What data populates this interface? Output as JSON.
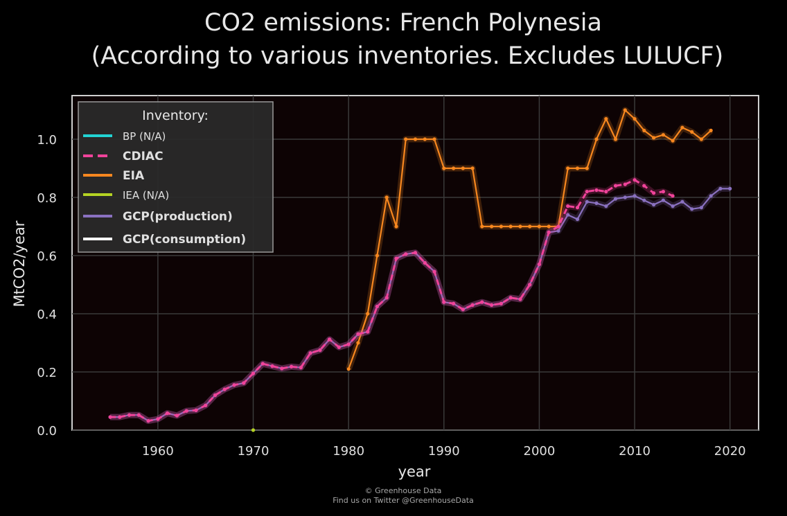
{
  "chart_data": {
    "type": "line",
    "title": "CO2 emissions: French Polynesia",
    "subtitle": "(According to various inventories. Excludes LULUCF)",
    "xlabel": "year",
    "ylabel": "MtCO2/year",
    "xlim": [
      1951,
      2023
    ],
    "ylim": [
      0.0,
      1.15
    ],
    "xticks": [
      1960,
      1970,
      1980,
      1990,
      2000,
      2010,
      2020
    ],
    "yticks": [
      "0.0",
      "0.2",
      "0.4",
      "0.6",
      "0.8",
      "1.0"
    ],
    "grid": true,
    "legend_position": "top-left",
    "legend_title": "Inventory:",
    "background": "#0d0304",
    "series": [
      {
        "name": "BP (N/A)",
        "color": "#22d3d3",
        "style": "solid",
        "bold": false,
        "x": [],
        "y": []
      },
      {
        "name": "CDIAC",
        "color": "#f0439a",
        "style": "dashed",
        "bold": true,
        "x": [
          1955,
          1956,
          1957,
          1958,
          1959,
          1960,
          1961,
          1962,
          1963,
          1964,
          1965,
          1966,
          1967,
          1968,
          1969,
          1970,
          1971,
          1972,
          1973,
          1974,
          1975,
          1976,
          1977,
          1978,
          1979,
          1980,
          1981,
          1982,
          1983,
          1984,
          1985,
          1986,
          1987,
          1988,
          1989,
          1990,
          1991,
          1992,
          1993,
          1994,
          1995,
          1996,
          1997,
          1998,
          1999,
          2000,
          2001,
          2002,
          2003,
          2004,
          2005,
          2006,
          2007,
          2008,
          2009,
          2010,
          2011,
          2012,
          2013,
          2014
        ],
        "y": [
          0.045,
          0.045,
          0.052,
          0.052,
          0.032,
          0.038,
          0.058,
          0.05,
          0.066,
          0.068,
          0.085,
          0.12,
          0.14,
          0.155,
          0.162,
          0.195,
          0.228,
          0.22,
          0.212,
          0.218,
          0.215,
          0.265,
          0.275,
          0.312,
          0.285,
          0.295,
          0.33,
          0.338,
          0.425,
          0.455,
          0.59,
          0.605,
          0.61,
          0.575,
          0.545,
          0.44,
          0.435,
          0.415,
          0.43,
          0.44,
          0.43,
          0.435,
          0.455,
          0.45,
          0.5,
          0.57,
          0.68,
          0.7,
          0.77,
          0.765,
          0.82,
          0.825,
          0.82,
          0.84,
          0.845,
          0.86,
          0.84,
          0.815,
          0.82,
          0.805
        ]
      },
      {
        "name": "EIA",
        "color": "#f7871f",
        "style": "solid",
        "bold": true,
        "x": [
          1980,
          1981,
          1982,
          1983,
          1984,
          1985,
          1986,
          1987,
          1988,
          1989,
          1990,
          1991,
          1992,
          1993,
          1994,
          1995,
          1996,
          1997,
          1998,
          1999,
          2000,
          2001,
          2002,
          2003,
          2004,
          2005,
          2006,
          2007,
          2008,
          2009,
          2010,
          2011,
          2012,
          2013,
          2014,
          2015,
          2016,
          2017,
          2018
        ],
        "y": [
          0.21,
          0.3,
          0.4,
          0.6,
          0.8,
          0.7,
          1.0,
          1.0,
          1.0,
          1.0,
          0.9,
          0.9,
          0.9,
          0.9,
          0.7,
          0.7,
          0.7,
          0.7,
          0.7,
          0.7,
          0.7,
          0.7,
          0.7,
          0.9,
          0.9,
          0.9,
          1.0,
          1.07,
          1.0,
          1.1,
          1.07,
          1.03,
          1.005,
          1.015,
          0.995,
          1.04,
          1.025,
          1.0,
          1.03
        ]
      },
      {
        "name": "IEA (N/A)",
        "color": "#b5d323",
        "style": "solid",
        "bold": false,
        "x": [
          1970
        ],
        "y": [
          0.0
        ]
      },
      {
        "name": "GCP(production)",
        "color": "#8a71c0",
        "style": "solid",
        "bold": true,
        "x": [
          1955,
          1956,
          1957,
          1958,
          1959,
          1960,
          1961,
          1962,
          1963,
          1964,
          1965,
          1966,
          1967,
          1968,
          1969,
          1970,
          1971,
          1972,
          1973,
          1974,
          1975,
          1976,
          1977,
          1978,
          1979,
          1980,
          1981,
          1982,
          1983,
          1984,
          1985,
          1986,
          1987,
          1988,
          1989,
          1990,
          1991,
          1992,
          1993,
          1994,
          1995,
          1996,
          1997,
          1998,
          1999,
          2000,
          2001,
          2002,
          2003,
          2004,
          2005,
          2006,
          2007,
          2008,
          2009,
          2010,
          2011,
          2012,
          2013,
          2014,
          2015,
          2016,
          2017,
          2018,
          2019,
          2020
        ],
        "y": [
          0.045,
          0.045,
          0.052,
          0.052,
          0.032,
          0.038,
          0.058,
          0.05,
          0.066,
          0.068,
          0.085,
          0.12,
          0.14,
          0.155,
          0.162,
          0.195,
          0.228,
          0.22,
          0.212,
          0.218,
          0.215,
          0.265,
          0.275,
          0.312,
          0.285,
          0.295,
          0.33,
          0.338,
          0.425,
          0.455,
          0.59,
          0.605,
          0.61,
          0.575,
          0.545,
          0.44,
          0.435,
          0.415,
          0.43,
          0.44,
          0.43,
          0.435,
          0.455,
          0.45,
          0.5,
          0.57,
          0.68,
          0.685,
          0.74,
          0.725,
          0.785,
          0.78,
          0.77,
          0.795,
          0.8,
          0.805,
          0.79,
          0.775,
          0.79,
          0.77,
          0.785,
          0.76,
          0.765,
          0.805,
          0.83,
          0.83
        ]
      },
      {
        "name": "GCP(consumption)",
        "color": "#ffffff",
        "style": "solid",
        "bold": true,
        "x": [],
        "y": []
      }
    ]
  },
  "credits": {
    "line1": "© Greenhouse Data",
    "line2": "Find us on Twitter @GreenhouseData"
  }
}
